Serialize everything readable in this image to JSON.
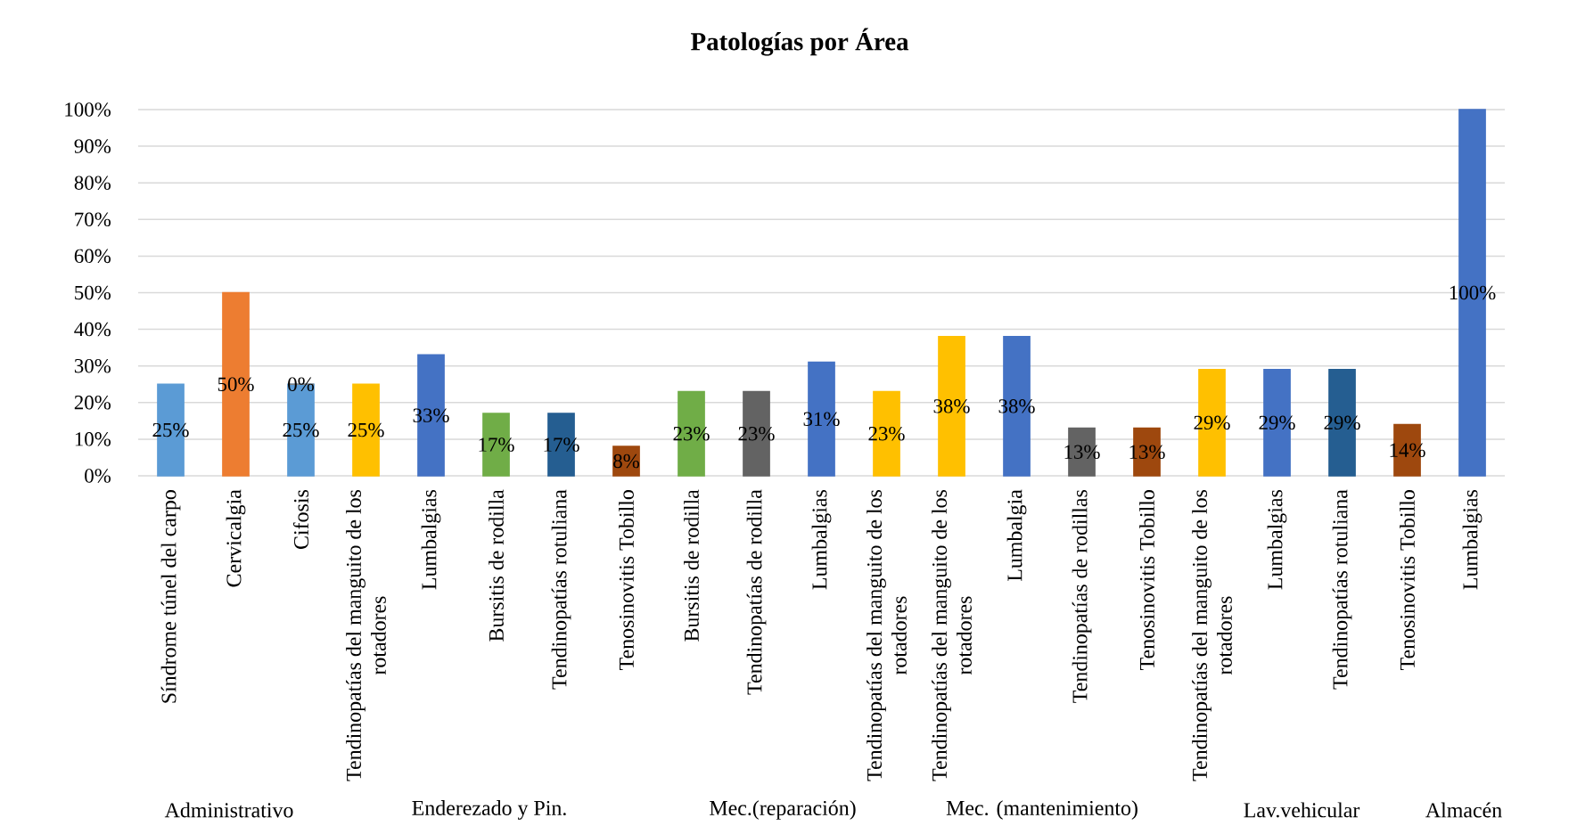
{
  "chart_data": {
    "type": "bar",
    "title": "Patologías  por Área",
    "categories": [
      "Síndrome túnel del carpo",
      "Cervicalgia",
      "Cifosis",
      "Tendinopatías del manguito de los rotadores",
      "Lumbalgias",
      "Bursitis de rodilla",
      "Tendinopatías rotuliana",
      "Tenosinovitis Tobillo",
      "Bursitis de rodilla",
      "Tendinopatías de rodilla",
      "Lumbalgias",
      "Tendinopatías del manguito de los rotadores",
      "Tendinopatías del manguito de los rotadores",
      "Lumbalgia",
      "Tendinopatías de rodillas",
      "Tenosinovitis Tobillo",
      "Tendinopatías del manguito de los rotadores",
      "Lumbalgias",
      "Tendinopatías rotuliana",
      "Tenosinovitis Tobillo",
      "Lumbalgias"
    ],
    "series": [
      {
        "values": [
          25,
          50,
          25,
          25,
          33,
          17,
          17,
          8,
          23,
          23,
          31,
          23,
          38,
          38,
          13,
          13,
          29,
          29,
          29,
          14,
          100
        ],
        "colors": [
          "#5b9bd5",
          "#ed7d31",
          "#5b9bd5",
          "#ffc000",
          "#4472c4",
          "#70ad47",
          "#255e91",
          "#9e480e",
          "#70ad47",
          "#636363",
          "#4472c4",
          "#ffc000",
          "#ffc000",
          "#4472c4",
          "#636363",
          "#9e480e",
          "#ffc000",
          "#4472c4",
          "#255e91",
          "#9e480e",
          "#4472c4"
        ],
        "value_labels": [
          "25%",
          "50%",
          "25%",
          "25%",
          "33%",
          "17%",
          "17%",
          "8%",
          "23%",
          "23%",
          "31%",
          "23%",
          "38%",
          "38%",
          "13%",
          "13%",
          "29%",
          "29%",
          "29%",
          "14%",
          "100%"
        ]
      },
      {
        "values": [
          null,
          null,
          0,
          null,
          null,
          null,
          null,
          null,
          null,
          null,
          null,
          null,
          null,
          null,
          null,
          null,
          null,
          null,
          null,
          null,
          null
        ],
        "color": "#7f7f7f",
        "value_labels": [
          null,
          null,
          "0%",
          null,
          null,
          null,
          null,
          null,
          null,
          null,
          null,
          null,
          null,
          null,
          null,
          null,
          null,
          null,
          null,
          null,
          null
        ]
      }
    ],
    "stacked": true,
    "ylim": [
      0,
      100
    ],
    "yticks": [
      {
        "value": 0,
        "label": "0%"
      },
      {
        "value": 10,
        "label": "10%"
      },
      {
        "value": 20,
        "label": "20%"
      },
      {
        "value": 30,
        "label": "30%"
      },
      {
        "value": 40,
        "label": "40%"
      },
      {
        "value": 50,
        "label": "50%"
      },
      {
        "value": 60,
        "label": "60%"
      },
      {
        "value": 70,
        "label": "70%"
      },
      {
        "value": 80,
        "label": "80%"
      },
      {
        "value": 90,
        "label": "90%"
      },
      {
        "value": 100,
        "label": "100%"
      }
    ],
    "grid": "y",
    "annotations": [
      "Administrativo",
      "Enderezado y Pin.",
      "Mec.(reparación)",
      "Mec. (mantenimiento)",
      "Lav.vehicular",
      "Almacén"
    ]
  }
}
